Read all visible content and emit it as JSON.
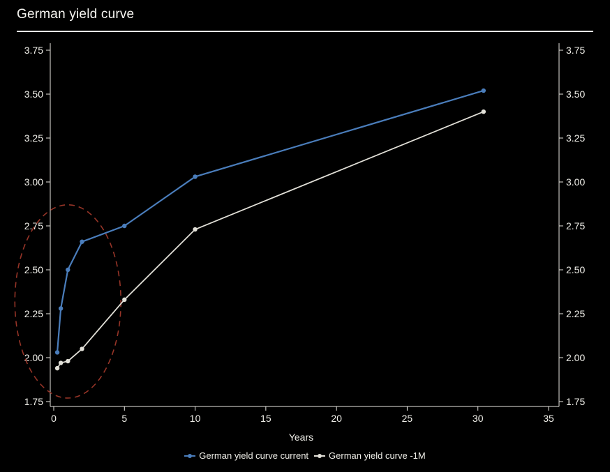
{
  "page": {
    "title": "German yield curve"
  },
  "axes": {
    "xlabel": "Years"
  },
  "legend": [
    {
      "label": "German yield curve current",
      "color_key": "series_current"
    },
    {
      "label": "German yield curve -1M",
      "color_key": "series_prev"
    }
  ],
  "colors": {
    "background": "#000000",
    "text": "#f1f0ea",
    "axis": "#e7e6e0",
    "series_current": "#4a7dbb",
    "series_prev": "#e2e0d8",
    "annotation": "#963427"
  },
  "chart_data": {
    "type": "line",
    "title": "German yield curve",
    "xlabel": "Years",
    "ylabel": "",
    "x": [
      0.25,
      0.5,
      1,
      2,
      5,
      10,
      30.4
    ],
    "series": [
      {
        "name": "German yield curve current",
        "color_key": "series_current",
        "values": [
          2.03,
          2.28,
          2.5,
          2.66,
          2.75,
          3.03,
          3.52
        ]
      },
      {
        "name": "German yield curve -1M",
        "color_key": "series_prev",
        "values": [
          1.94,
          1.97,
          1.98,
          2.05,
          2.33,
          2.73,
          3.4
        ]
      }
    ],
    "x_ticks": [
      0,
      5,
      10,
      15,
      20,
      25,
      30,
      35
    ],
    "y_ticks": [
      1.75,
      2.0,
      2.25,
      2.5,
      2.75,
      3.0,
      3.25,
      3.5,
      3.75
    ],
    "xlim": [
      0,
      35
    ],
    "ylim": [
      1.75,
      3.75
    ],
    "grid": false,
    "y_axis_sides": [
      "left",
      "right"
    ],
    "legend_position": "bottom-center",
    "annotation": {
      "type": "dashed-ellipse",
      "meaning": "highlight of short end of curve",
      "center_x_years": 1.0,
      "center_y_value": 2.32,
      "radius_x_years": 3.75,
      "radius_y_value": 0.55,
      "color_key": "annotation"
    }
  }
}
